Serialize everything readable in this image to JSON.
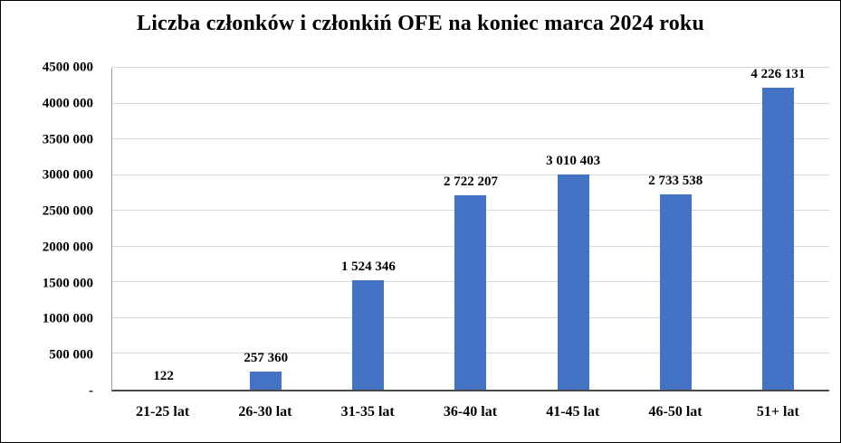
{
  "chart_data": {
    "type": "bar",
    "title": "Liczba członków i członkiń OFE na koniec marca 2024 roku",
    "categories": [
      "21-25 lat",
      "26-30 lat",
      "31-35 lat",
      "36-40 lat",
      "41-45 lat",
      "46-50 lat",
      "51+ lat"
    ],
    "values": [
      122,
      257360,
      1524346,
      2722207,
      3010403,
      2733538,
      4226131
    ],
    "value_labels": [
      "122",
      "257 360",
      "1 524 346",
      "2 722 207",
      "3 010 403",
      "2 733 538",
      "4 226 131"
    ],
    "y_axis": {
      "min": 0,
      "max": 4500000,
      "tick_interval": 500000,
      "tick_labels": [
        "-",
        "500 000",
        "1000 000",
        "1500 000",
        "2000 000",
        "2500 000",
        "3000 000",
        "3500 000",
        "4000 000",
        "4500 000"
      ]
    },
    "xlabel": "",
    "ylabel": "",
    "legend_position": "none",
    "grid": true,
    "colors": {
      "bar": "#4472C4",
      "gridline": "#d9d9d9",
      "axis": "#4a4a4a",
      "text": "#000000",
      "background": "#ffffff"
    }
  }
}
